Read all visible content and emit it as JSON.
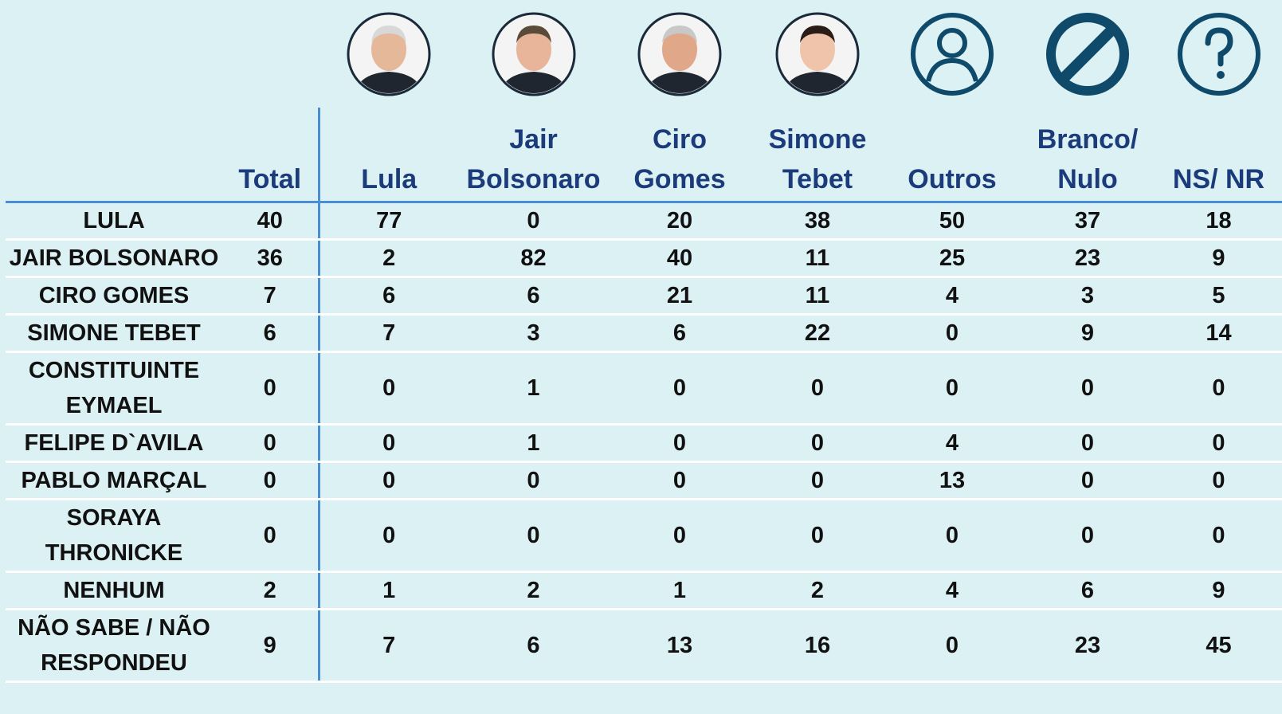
{
  "table": {
    "columns": [
      "Total",
      "Lula",
      "Jair Bolsonaro",
      "Ciro Gomes",
      "Simone Tebet",
      "Outros",
      "Branco/ Nulo",
      "NS/ NR"
    ],
    "rows": [
      {
        "label": "LULA",
        "values": [
          40,
          77,
          0,
          20,
          38,
          50,
          37,
          18
        ]
      },
      {
        "label": "JAIR BOLSONARO",
        "values": [
          36,
          2,
          82,
          40,
          11,
          25,
          23,
          9
        ]
      },
      {
        "label": "CIRO GOMES",
        "values": [
          7,
          6,
          6,
          21,
          11,
          4,
          3,
          5
        ]
      },
      {
        "label": "SIMONE TEBET",
        "values": [
          6,
          7,
          3,
          6,
          22,
          0,
          9,
          14
        ]
      },
      {
        "label": "CONSTITUINTE EYMAEL",
        "values": [
          0,
          0,
          1,
          0,
          0,
          0,
          0,
          0
        ]
      },
      {
        "label": "FELIPE D`AVILA",
        "values": [
          0,
          0,
          1,
          0,
          0,
          4,
          0,
          0
        ]
      },
      {
        "label": "PABLO MARÇAL",
        "values": [
          0,
          0,
          0,
          0,
          0,
          13,
          0,
          0
        ]
      },
      {
        "label": "SORAYA THRONICKE",
        "values": [
          0,
          0,
          0,
          0,
          0,
          0,
          0,
          0
        ]
      },
      {
        "label": "NENHUM",
        "values": [
          2,
          1,
          2,
          1,
          2,
          4,
          6,
          9
        ]
      },
      {
        "label": "NÃO SABE / NÃO RESPONDEU",
        "values": [
          9,
          7,
          6,
          13,
          16,
          0,
          23,
          45
        ]
      }
    ]
  }
}
